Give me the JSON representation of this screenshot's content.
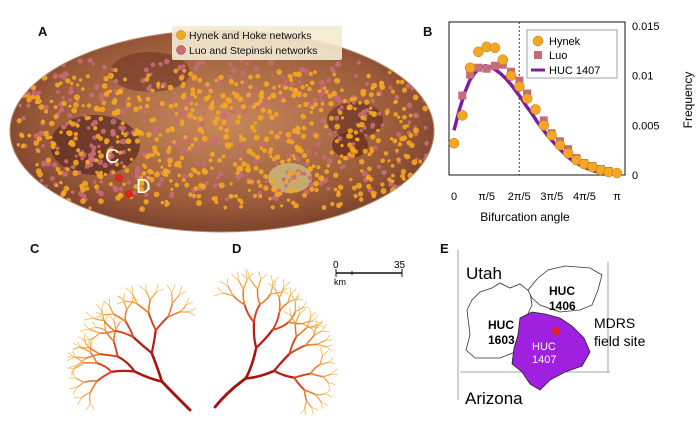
{
  "panels": {
    "A": {
      "label": "A",
      "legend": [
        {
          "text": "Hynek and Hoke networks",
          "color": "#f5a623"
        },
        {
          "text": "Luo and Stepinski networks",
          "color": "#c86b78"
        }
      ],
      "markers": [
        "C",
        "D"
      ],
      "marker_color": "#e0241b"
    },
    "B": {
      "label": "B",
      "legend": [
        "Hynek",
        "Luo",
        "HUC 1407"
      ],
      "xlabel": "Bifurcation angle",
      "ylabel": "Frequency",
      "xticks": [
        "0",
        "π/5",
        "2π/5",
        "3π/5",
        "4π/5",
        "π"
      ],
      "yticks": [
        "0",
        "0.005",
        "0.01",
        "0.015"
      ]
    },
    "C": {
      "label": "C"
    },
    "D": {
      "label": "D",
      "scale_start": "0",
      "scale_end": "35",
      "scale_unit": "km"
    },
    "E": {
      "label": "E",
      "state_top": "Utah",
      "state_bottom": "Arizona",
      "huc1603_a": "HUC",
      "huc1603_b": "1603",
      "huc1406_a": "HUC",
      "huc1406_b": "1406",
      "huc1407_a": "HUC",
      "huc1407_b": "1407",
      "site_a": "MDRS",
      "site_b": "field site",
      "huc1407_color": "#a020e0"
    }
  },
  "chart_data": {
    "type": "scatter",
    "xlabel": "Bifurcation angle",
    "ylabel": "Frequency",
    "xlim": [
      0,
      3.1416
    ],
    "ylim": [
      0,
      0.015
    ],
    "x_tick_labels": [
      "0",
      "π/5",
      "2π/5",
      "3π/5",
      "4π/5",
      "π"
    ],
    "y_tick_labels": [
      "0",
      "0.005",
      "0.01",
      "0.015"
    ],
    "vline_x": 1.2566,
    "series": [
      {
        "name": "Hynek",
        "kind": "circle",
        "color": "#f5a623",
        "x": [
          0.0,
          0.16,
          0.31,
          0.47,
          0.63,
          0.79,
          0.94,
          1.1,
          1.26,
          1.41,
          1.57,
          1.73,
          1.88,
          2.04,
          2.2,
          2.36,
          2.51,
          2.67,
          2.83,
          2.98,
          3.14
        ],
        "y": [
          0.0032,
          0.006,
          0.0108,
          0.0124,
          0.0129,
          0.0128,
          0.0116,
          0.01,
          0.0089,
          0.0077,
          0.0066,
          0.005,
          0.004,
          0.003,
          0.0022,
          0.0015,
          0.0011,
          0.0008,
          0.0005,
          0.0003,
          0.0002
        ]
      },
      {
        "name": "Luo",
        "kind": "square",
        "color": "#c86b78",
        "x": [
          0.16,
          0.31,
          0.47,
          0.63,
          0.79,
          0.94,
          1.1,
          1.26,
          1.41,
          1.57,
          1.73,
          1.88,
          2.04,
          2.2,
          2.36,
          2.51,
          2.67,
          2.83,
          2.98
        ],
        "y": [
          0.008,
          0.0101,
          0.0108,
          0.0107,
          0.011,
          0.0111,
          0.0104,
          0.0095,
          0.0082,
          0.0066,
          0.0055,
          0.0042,
          0.0034,
          0.0026,
          0.0017,
          0.0012,
          0.0009,
          0.0006,
          0.0004
        ]
      },
      {
        "name": "HUC 1407",
        "kind": "line",
        "color": "#7b1fa2",
        "x": [
          0.0,
          0.1,
          0.2,
          0.3,
          0.4,
          0.5,
          0.6,
          0.7,
          0.8,
          0.9,
          1.0,
          1.1,
          1.2,
          1.3,
          1.4,
          1.5,
          1.6,
          1.7,
          1.8,
          1.9,
          2.0,
          2.1,
          2.2,
          2.3,
          2.4,
          2.5,
          2.6,
          2.7,
          2.8,
          2.9,
          3.0,
          3.1416
        ],
        "y": [
          0.0045,
          0.0065,
          0.0082,
          0.0095,
          0.0103,
          0.0108,
          0.011,
          0.0109,
          0.0106,
          0.0102,
          0.0097,
          0.0091,
          0.0084,
          0.0077,
          0.0069,
          0.0062,
          0.0054,
          0.0047,
          0.004,
          0.0034,
          0.0028,
          0.0023,
          0.0018,
          0.0014,
          0.0011,
          0.0008,
          0.0006,
          0.0004,
          0.0003,
          0.0002,
          0.0001,
          0.0001
        ]
      }
    ]
  }
}
